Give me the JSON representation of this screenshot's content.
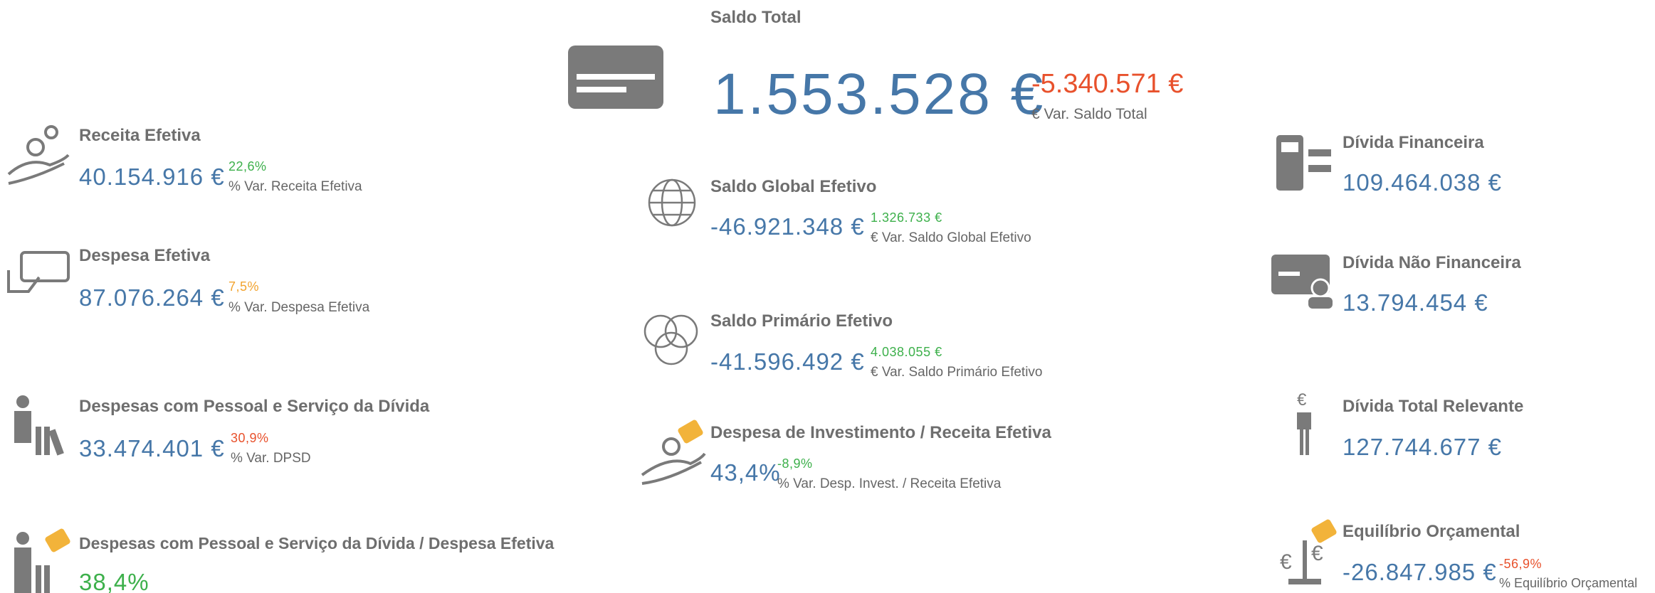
{
  "saldo_total": {
    "title": "Saldo Total",
    "value": "1.553.528 €",
    "change": "-5.340.571 €",
    "change_label": "€ Var. Saldo Total"
  },
  "left": [
    {
      "title": "Receita Efetiva",
      "value": "40.154.916 €",
      "change": "22,6%",
      "change_label": "% Var. Receita Efetiva"
    },
    {
      "title": "Despesa Efetiva",
      "value": "87.076.264 €",
      "change": "7,5%",
      "change_label": "% Var. Despesa Efetiva"
    },
    {
      "title": "Despesas com Pessoal e Serviço da Dívida",
      "value": "33.474.401 €",
      "change": "30,9%",
      "change_label": "% Var. DPSD"
    },
    {
      "title": "Despesas com Pessoal e Serviço da Dívida / Despesa Efetiva",
      "value": "38,4%"
    }
  ],
  "middle": [
    {
      "title": "Saldo Global Efetivo",
      "value": "-46.921.348 €",
      "change": "1.326.733 €",
      "change_label": "€ Var. Saldo Global Efetivo"
    },
    {
      "title": "Saldo Primário Efetivo",
      "value": "-41.596.492 €",
      "change": "4.038.055 €",
      "change_label": "€ Var. Saldo Primário Efetivo"
    },
    {
      "title": "Despesa de Investimento / Receita Efetiva",
      "value": "43,4%",
      "change": "-8,9%",
      "change_label": "% Var. Desp. Invest. / Receita Efetiva"
    }
  ],
  "right": [
    {
      "title": "Dívida Financeira",
      "value": "109.464.038 €"
    },
    {
      "title": "Dívida Não Financeira",
      "value": "13.794.454 €"
    },
    {
      "title": "Dívida Total Relevante",
      "value": "127.744.677 €"
    },
    {
      "title": "Equilíbrio Orçamental",
      "value": "-26.847.985 €",
      "change": "-56,9%",
      "change_label": "% Equilíbrio Orçamental"
    }
  ]
}
